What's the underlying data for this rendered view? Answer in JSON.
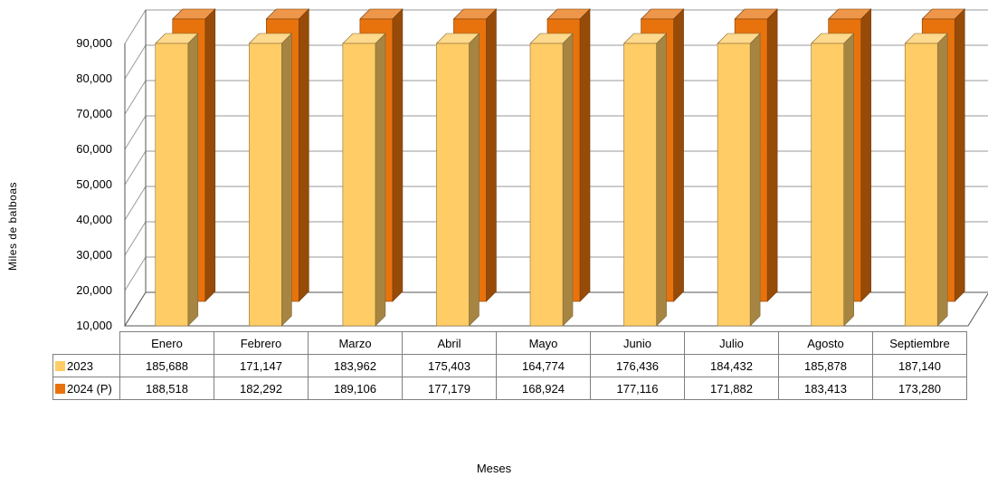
{
  "chart_data": {
    "type": "bar",
    "xlabel": "Meses",
    "ylabel": "Miles de balboas",
    "ylim": [
      10000,
      90000
    ],
    "yticks": [
      "10,000",
      "20,000",
      "30,000",
      "40,000",
      "50,000",
      "60,000",
      "70,000",
      "80,000",
      "90,000"
    ],
    "categories": [
      "Enero",
      "Febrero",
      "Marzo",
      "Abril",
      "Mayo",
      "Junio",
      "Julio",
      "Agosto",
      "Septiembre"
    ],
    "series": [
      {
        "name": "2023",
        "color": "#FFCC66",
        "values": [
          185688,
          171147,
          183962,
          175403,
          164774,
          176436,
          184432,
          185878,
          187140
        ],
        "labels": [
          "185,688",
          "171,147",
          "183,962",
          "175,403",
          "164,774",
          "176,436",
          "184,432",
          "185,878",
          "187,140"
        ]
      },
      {
        "name": "2024 (P)",
        "color": "#E8730C",
        "values": [
          188518,
          182292,
          189106,
          177179,
          168924,
          177116,
          171882,
          183413,
          173280
        ],
        "labels": [
          "188,518",
          "182,292",
          "189,106",
          "177,179",
          "168,924",
          "177,116",
          "171,882",
          "183,413",
          "173,280"
        ]
      }
    ],
    "grid": true,
    "legend": "data-table"
  }
}
